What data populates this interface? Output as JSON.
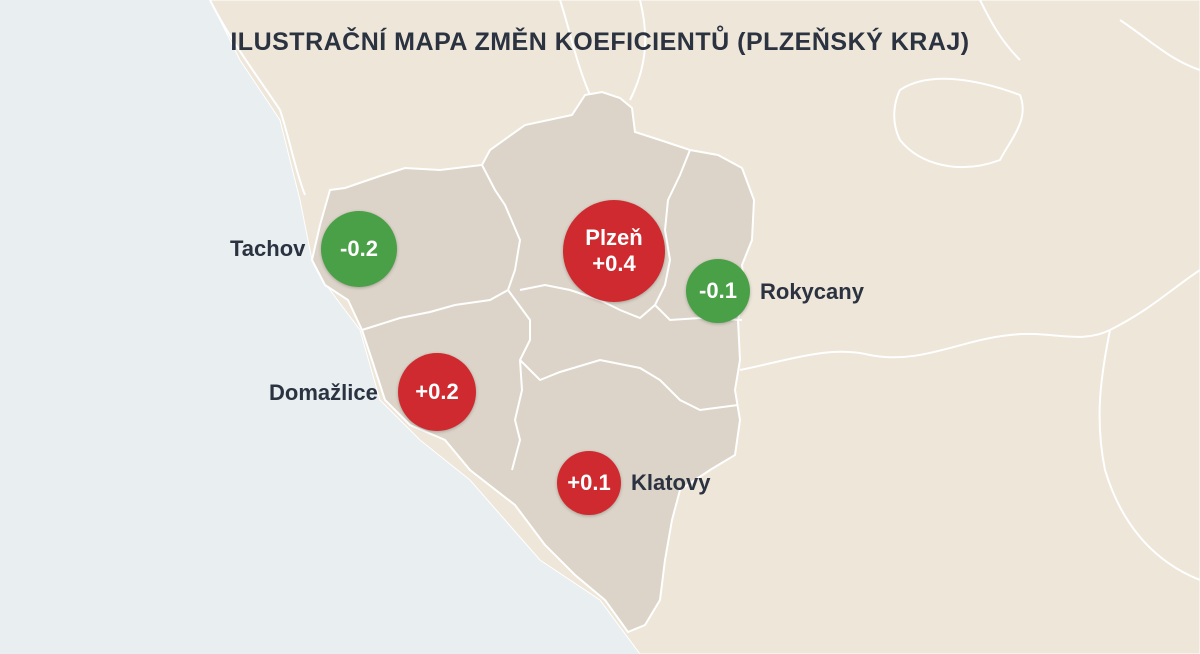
{
  "title": "ILUSTRAČNÍ MAPA ZMĚN KOEFICIENTŮ (PLZEŇSKÝ KRAJ)",
  "colors": {
    "increase": "#cf2a2f",
    "decrease": "#49a047",
    "region_fill": "#dcd4c8",
    "land_fill": "#ede6d9",
    "sea_fill": "#e9eef1",
    "border": "#ffffff"
  },
  "districts": {
    "tachov": {
      "name": "Tachov",
      "change": "-0.2",
      "value": -0.2
    },
    "plzen": {
      "name": "Plzeň",
      "change": "+0.4",
      "value": 0.4
    },
    "rokycany": {
      "name": "Rokycany",
      "change": "-0.1",
      "value": -0.1
    },
    "domazlice": {
      "name": "Domažlice",
      "change": "+0.2",
      "value": 0.2
    },
    "klatovy": {
      "name": "Klatovy",
      "change": "+0.1",
      "value": 0.1
    }
  }
}
